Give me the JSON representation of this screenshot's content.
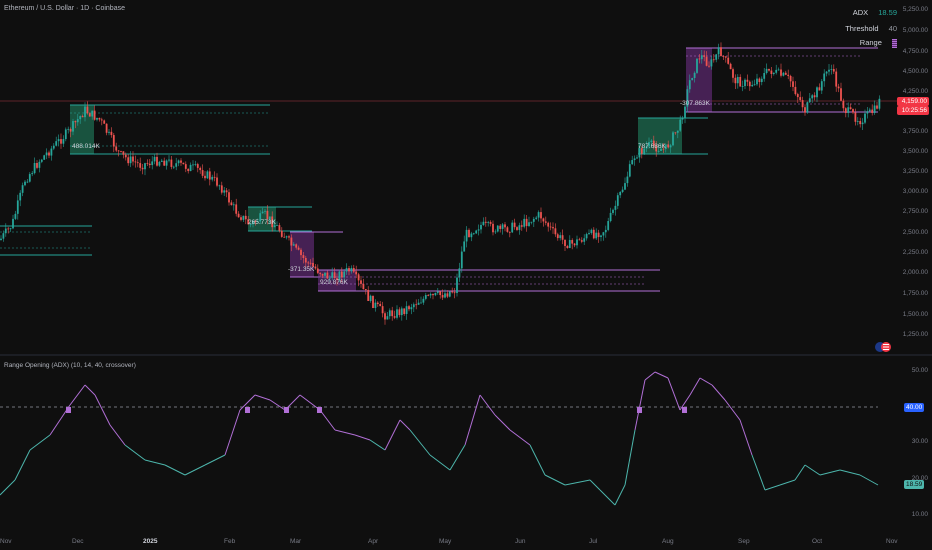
{
  "header": {
    "symbol_title": "Ethereum / U.S. Dollar · 1D · Coinbase",
    "legend": [
      {
        "label": "ADX",
        "value": "18.59",
        "value_color": "#26a69a"
      },
      {
        "label": "Threshold",
        "value": "40",
        "value_color": "#d1d4dc"
      },
      {
        "label": "Range",
        "value": "",
        "value_color": "#b16fd6"
      }
    ]
  },
  "price_axis": {
    "ticks": [
      "5,250.00",
      "5,000.00",
      "4,750.00",
      "4,500.00",
      "4,250.00",
      "3,750.00",
      "3,500.00",
      "3,250.00",
      "3,000.00",
      "2,750.00",
      "2,500.00",
      "2,250.00",
      "2,000.00",
      "1,750.00",
      "1,500.00",
      "1,250.00"
    ],
    "current_price": "4,159.00",
    "countdown": "10:25:56",
    "current_price_color": "#f23645"
  },
  "indicator": {
    "title": "Range Opening (ADX) (10, 14, 40, crossover)",
    "ticks": [
      "50.00",
      "40.00",
      "30.00",
      "20.00",
      "10.00"
    ],
    "threshold_tag": "40.00",
    "value_tag": "18.59"
  },
  "time_axis": {
    "labels": [
      "Nov",
      "Dec",
      "2025",
      "Feb",
      "Mar",
      "Apr",
      "May",
      "Jun",
      "Jul",
      "Aug",
      "Sep",
      "Oct",
      "Nov"
    ],
    "bold_label": "2025"
  },
  "ranges": [
    {
      "label": "488.014K",
      "color": "#26a69a"
    },
    {
      "label": "265.773K",
      "color": "#26a69a"
    },
    {
      "label": "-371.35K",
      "color": "#9c27b0"
    },
    {
      "label": "929.876K",
      "color": "#9c27b0"
    },
    {
      "label": "787.686K",
      "color": "#26a69a"
    },
    {
      "label": "-307.863K",
      "color": "#9c27b0"
    }
  ],
  "colors": {
    "up": "#26a69a",
    "down": "#ef5350",
    "adx_high": "#b16fd6",
    "adx_low": "#4db6ac",
    "background": "#0f0f0f"
  }
}
